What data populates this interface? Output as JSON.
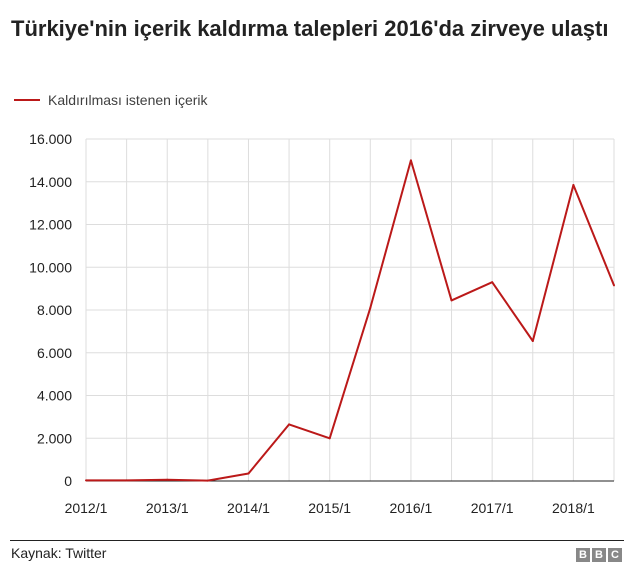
{
  "title": "Türkiye'nin içerik kaldırma talepleri 2016'da zirveye ulaştı",
  "source": "Kaynak: Twitter",
  "logo": [
    "B",
    "B",
    "C"
  ],
  "colors": {
    "line": "#bb1919",
    "grid": "#dddddd",
    "axis": "#222222",
    "text": "#222222"
  },
  "chart_data": {
    "type": "line",
    "title": "Türkiye'nin içerik kaldırma talepleri 2016'da zirveye ulaştı",
    "x": [
      "2012/1",
      "2012/2",
      "2013/1",
      "2013/2",
      "2014/1",
      "2014/2",
      "2015/1",
      "2015/2",
      "2016/1",
      "2016/2",
      "2017/1",
      "2017/2",
      "2018/1",
      "2018/2"
    ],
    "x_tick_labels": [
      "2012/1",
      "2013/1",
      "2014/1",
      "2015/1",
      "2016/1",
      "2017/1",
      "2018/1"
    ],
    "series": [
      {
        "name": "Kaldırılması istenen içerik",
        "values": [
          30,
          30,
          60,
          20,
          350,
          2650,
          2000,
          8100,
          15000,
          8450,
          9300,
          6550,
          13850,
          9150
        ]
      }
    ],
    "y_ticks": [
      0,
      2000,
      4000,
      6000,
      8000,
      10000,
      12000,
      14000,
      16000
    ],
    "y_tick_labels": [
      "0",
      "2.000",
      "4.000",
      "6.000",
      "8.000",
      "10.000",
      "12.000",
      "14.000",
      "16.000"
    ],
    "ylim": [
      0,
      16000
    ],
    "xlabel": "",
    "ylabel": "",
    "grid": true,
    "legend": "top-left"
  }
}
